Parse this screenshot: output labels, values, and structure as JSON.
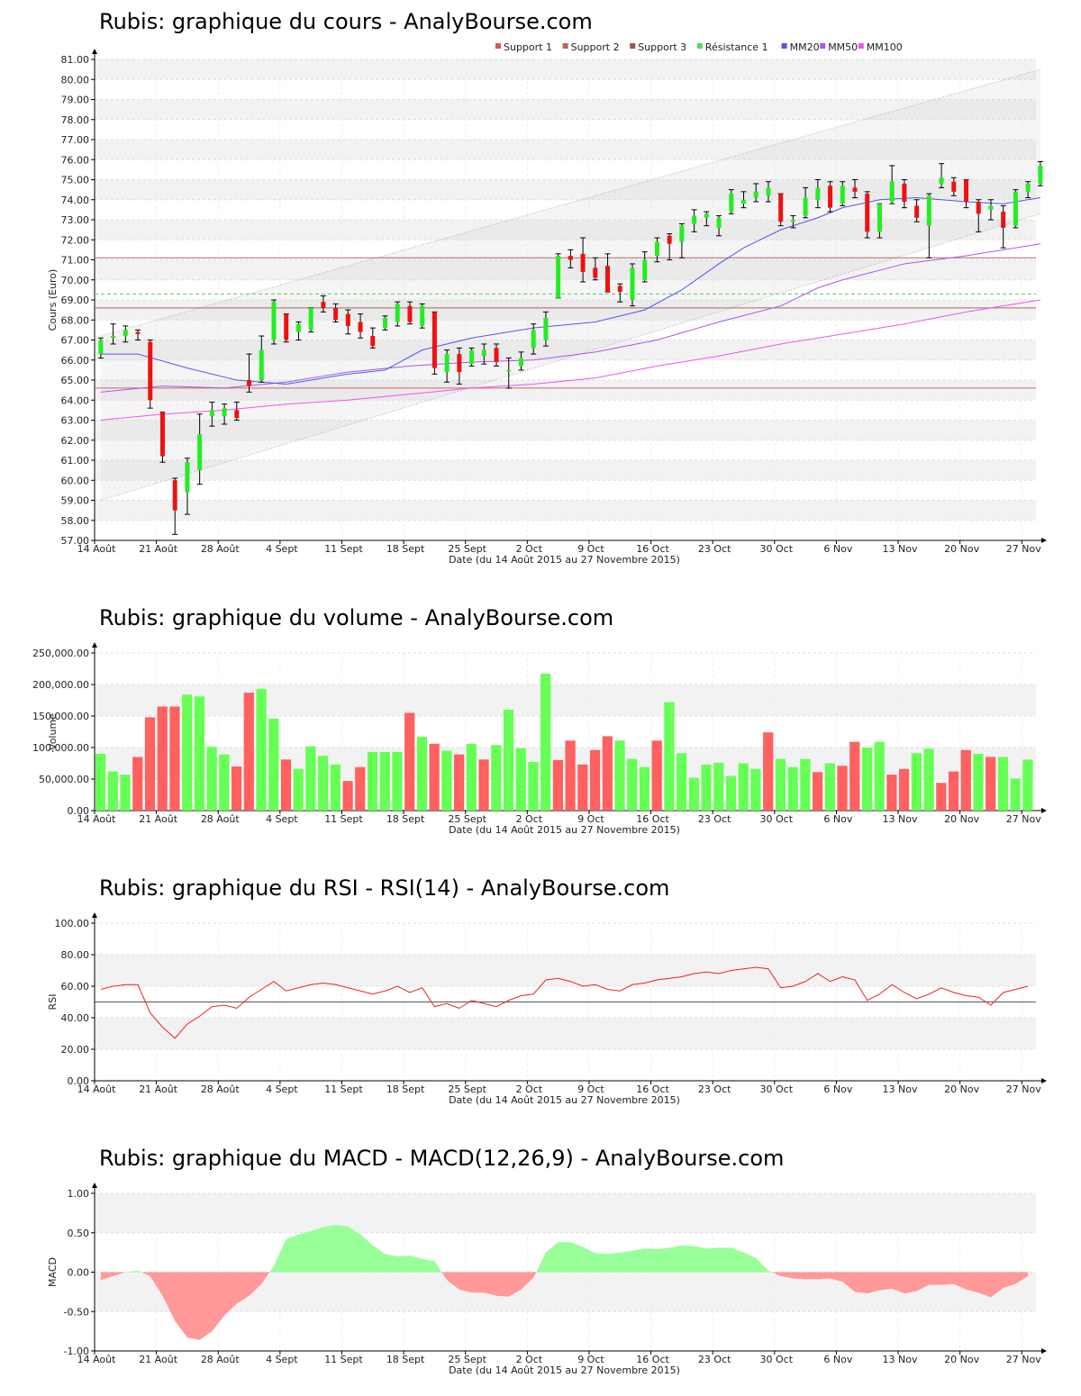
{
  "chart_data": [
    {
      "id": "price",
      "type": "candlestick",
      "title": "Rubis: graphique du cours - AnalyBourse.com",
      "xlabel": "Date (du 14 Août 2015 au 27 Novembre 2015)",
      "ylabel": "Cours (Euro)",
      "ylim": [
        57,
        81
      ],
      "y_ticks": [
        "57.00",
        "58.00",
        "59.00",
        "60.00",
        "61.00",
        "62.00",
        "63.00",
        "64.00",
        "65.00",
        "66.00",
        "67.00",
        "68.00",
        "69.00",
        "70.00",
        "71.00",
        "72.00",
        "73.00",
        "74.00",
        "75.00",
        "76.00",
        "77.00",
        "78.00",
        "79.00",
        "80.00",
        "81.00"
      ],
      "x_ticks": [
        {
          "label": "14 Août",
          "i": 0
        },
        {
          "label": "21 Août",
          "i": 5
        },
        {
          "label": "28 Août",
          "i": 10
        },
        {
          "label": "4 Sept",
          "i": 15
        },
        {
          "label": "11 Sept",
          "i": 20
        },
        {
          "label": "18 Sept",
          "i": 25
        },
        {
          "label": "25 Sept",
          "i": 30
        },
        {
          "label": "2 Oct",
          "i": 35
        },
        {
          "label": "9 Oct",
          "i": 40
        },
        {
          "label": "16 Oct",
          "i": 45
        },
        {
          "label": "23 Oct",
          "i": 50
        },
        {
          "label": "30 Oct",
          "i": 55
        },
        {
          "label": "6 Nov",
          "i": 60
        },
        {
          "label": "13 Nov",
          "i": 65
        },
        {
          "label": "20 Nov",
          "i": 70
        },
        {
          "label": "27 Nov",
          "i": 75
        }
      ],
      "legend": {
        "position": "top-right",
        "entries": [
          {
            "label": "Support 1",
            "color": "#dd5555"
          },
          {
            "label": "Support 2",
            "color": "#bb6655"
          },
          {
            "label": "Support 3",
            "color": "#995555"
          },
          {
            "label": "Résistance 1",
            "color": "#55dd55"
          },
          {
            "label": "MM20",
            "color": "#5555ee"
          },
          {
            "label": "MM50",
            "color": "#aa55ee"
          },
          {
            "label": "MM100",
            "color": "#ee55ee"
          }
        ]
      },
      "levels": {
        "support1": 64.6,
        "support2": 68.6,
        "support3": 71.1,
        "resistance1": 69.3
      },
      "candles": [
        {
          "o": 66.3,
          "h": 67.1,
          "l": 66.1,
          "c": 67.0
        },
        {
          "o": 67.1,
          "h": 67.8,
          "l": 66.8,
          "c": 67.2
        },
        {
          "o": 67.2,
          "h": 67.7,
          "l": 66.9,
          "c": 67.5
        },
        {
          "o": 67.4,
          "h": 67.5,
          "l": 67.0,
          "c": 67.3
        },
        {
          "o": 66.9,
          "h": 67.0,
          "l": 63.6,
          "c": 64.0
        },
        {
          "o": 63.4,
          "h": 63.4,
          "l": 60.9,
          "c": 61.2
        },
        {
          "o": 60.0,
          "h": 60.1,
          "l": 57.3,
          "c": 58.5
        },
        {
          "o": 59.4,
          "h": 61.1,
          "l": 58.3,
          "c": 60.9
        },
        {
          "o": 60.5,
          "h": 63.3,
          "l": 59.8,
          "c": 62.3
        },
        {
          "o": 63.2,
          "h": 63.9,
          "l": 62.7,
          "c": 63.5
        },
        {
          "o": 63.2,
          "h": 63.8,
          "l": 62.8,
          "c": 63.6
        },
        {
          "o": 63.5,
          "h": 63.9,
          "l": 63.0,
          "c": 63.1
        },
        {
          "o": 65.0,
          "h": 66.3,
          "l": 64.4,
          "c": 64.7
        },
        {
          "o": 65.0,
          "h": 67.2,
          "l": 64.9,
          "c": 66.5
        },
        {
          "o": 67.0,
          "h": 69.0,
          "l": 66.8,
          "c": 68.9
        },
        {
          "o": 68.3,
          "h": 68.3,
          "l": 66.9,
          "c": 67.0
        },
        {
          "o": 67.4,
          "h": 67.9,
          "l": 67.0,
          "c": 67.8
        },
        {
          "o": 67.5,
          "h": 68.6,
          "l": 67.4,
          "c": 68.6
        },
        {
          "o": 68.9,
          "h": 69.2,
          "l": 68.4,
          "c": 68.6
        },
        {
          "o": 68.6,
          "h": 68.8,
          "l": 67.9,
          "c": 68.0
        },
        {
          "o": 68.3,
          "h": 68.5,
          "l": 67.3,
          "c": 67.7
        },
        {
          "o": 67.9,
          "h": 68.3,
          "l": 67.1,
          "c": 67.4
        },
        {
          "o": 67.2,
          "h": 67.6,
          "l": 66.6,
          "c": 66.7
        },
        {
          "o": 67.6,
          "h": 68.2,
          "l": 67.5,
          "c": 68.1
        },
        {
          "o": 67.9,
          "h": 68.9,
          "l": 67.7,
          "c": 68.8
        },
        {
          "o": 68.7,
          "h": 68.9,
          "l": 67.8,
          "c": 67.9
        },
        {
          "o": 67.7,
          "h": 68.8,
          "l": 67.6,
          "c": 68.7
        },
        {
          "o": 68.4,
          "h": 68.4,
          "l": 65.3,
          "c": 65.6
        },
        {
          "o": 65.4,
          "h": 66.5,
          "l": 64.9,
          "c": 66.3
        },
        {
          "o": 66.3,
          "h": 66.6,
          "l": 64.8,
          "c": 65.4
        },
        {
          "o": 65.8,
          "h": 66.6,
          "l": 65.7,
          "c": 66.5
        },
        {
          "o": 66.2,
          "h": 66.8,
          "l": 65.8,
          "c": 66.5
        },
        {
          "o": 66.6,
          "h": 66.8,
          "l": 65.7,
          "c": 65.9
        },
        {
          "o": 65.5,
          "h": 66.1,
          "l": 64.6,
          "c": 65.5
        },
        {
          "o": 65.7,
          "h": 66.4,
          "l": 65.5,
          "c": 66.1
        },
        {
          "o": 66.6,
          "h": 67.8,
          "l": 66.3,
          "c": 67.5
        },
        {
          "o": 67.0,
          "h": 68.4,
          "l": 66.7,
          "c": 68.1
        },
        {
          "o": 69.1,
          "h": 71.3,
          "l": 69.1,
          "c": 71.2
        },
        {
          "o": 71.2,
          "h": 71.5,
          "l": 70.6,
          "c": 71.0
        },
        {
          "o": 71.3,
          "h": 72.1,
          "l": 69.9,
          "c": 70.4
        },
        {
          "o": 70.6,
          "h": 71.1,
          "l": 70.0,
          "c": 70.1
        },
        {
          "o": 70.7,
          "h": 71.3,
          "l": 69.4,
          "c": 69.4
        },
        {
          "o": 69.7,
          "h": 69.8,
          "l": 68.9,
          "c": 69.4
        },
        {
          "o": 69.0,
          "h": 70.8,
          "l": 68.7,
          "c": 70.6
        },
        {
          "o": 70.0,
          "h": 71.4,
          "l": 69.9,
          "c": 71.0
        },
        {
          "o": 71.2,
          "h": 72.1,
          "l": 70.9,
          "c": 71.9
        },
        {
          "o": 72.2,
          "h": 72.3,
          "l": 71.0,
          "c": 71.8
        },
        {
          "o": 71.9,
          "h": 72.8,
          "l": 71.1,
          "c": 72.7
        },
        {
          "o": 72.8,
          "h": 73.5,
          "l": 72.4,
          "c": 73.2
        },
        {
          "o": 73.1,
          "h": 73.4,
          "l": 72.7,
          "c": 73.3
        },
        {
          "o": 72.6,
          "h": 73.2,
          "l": 72.2,
          "c": 73.1
        },
        {
          "o": 73.4,
          "h": 74.5,
          "l": 73.3,
          "c": 74.3
        },
        {
          "o": 73.8,
          "h": 74.4,
          "l": 73.6,
          "c": 74.0
        },
        {
          "o": 74.1,
          "h": 74.8,
          "l": 73.9,
          "c": 74.4
        },
        {
          "o": 74.2,
          "h": 74.9,
          "l": 73.9,
          "c": 74.6
        },
        {
          "o": 74.3,
          "h": 74.3,
          "l": 72.7,
          "c": 72.9
        },
        {
          "o": 72.9,
          "h": 73.2,
          "l": 72.6,
          "c": 73.0
        },
        {
          "o": 73.2,
          "h": 74.6,
          "l": 73.1,
          "c": 74.1
        },
        {
          "o": 74.0,
          "h": 75.0,
          "l": 73.6,
          "c": 74.6
        },
        {
          "o": 74.7,
          "h": 74.9,
          "l": 73.4,
          "c": 73.6
        },
        {
          "o": 73.8,
          "h": 74.9,
          "l": 73.7,
          "c": 74.7
        },
        {
          "o": 74.6,
          "h": 75.0,
          "l": 74.1,
          "c": 74.4
        },
        {
          "o": 74.3,
          "h": 74.4,
          "l": 72.1,
          "c": 72.4
        },
        {
          "o": 72.4,
          "h": 73.8,
          "l": 72.1,
          "c": 73.8
        },
        {
          "o": 73.9,
          "h": 75.7,
          "l": 73.8,
          "c": 74.9
        },
        {
          "o": 74.8,
          "h": 75.0,
          "l": 73.6,
          "c": 73.9
        },
        {
          "o": 73.7,
          "h": 74.0,
          "l": 72.9,
          "c": 73.1
        },
        {
          "o": 72.7,
          "h": 74.3,
          "l": 71.1,
          "c": 74.2
        },
        {
          "o": 74.8,
          "h": 75.8,
          "l": 74.6,
          "c": 75.1
        },
        {
          "o": 74.9,
          "h": 75.1,
          "l": 74.2,
          "c": 74.4
        },
        {
          "o": 75.0,
          "h": 75.0,
          "l": 73.6,
          "c": 73.9
        },
        {
          "o": 73.9,
          "h": 74.0,
          "l": 72.4,
          "c": 73.3
        },
        {
          "o": 73.5,
          "h": 74.0,
          "l": 73.0,
          "c": 73.7
        },
        {
          "o": 73.4,
          "h": 73.7,
          "l": 71.6,
          "c": 72.6
        },
        {
          "o": 72.7,
          "h": 74.5,
          "l": 72.6,
          "c": 74.4
        },
        {
          "o": 74.4,
          "h": 74.9,
          "l": 74.1,
          "c": 74.8
        },
        {
          "o": 74.8,
          "h": 75.9,
          "l": 74.7,
          "c": 75.7
        }
      ],
      "ma20": [
        [
          0,
          66.3
        ],
        [
          3,
          66.3
        ],
        [
          7,
          65.6
        ],
        [
          11,
          65.0
        ],
        [
          15,
          64.8
        ],
        [
          20,
          65.3
        ],
        [
          23,
          65.5
        ],
        [
          26,
          66.5
        ],
        [
          30,
          67.1
        ],
        [
          35,
          67.6
        ],
        [
          40,
          67.9
        ],
        [
          44,
          68.5
        ],
        [
          47,
          69.5
        ],
        [
          50,
          70.8
        ],
        [
          52,
          71.6
        ],
        [
          55,
          72.5
        ],
        [
          58,
          73.1
        ],
        [
          60,
          73.6
        ],
        [
          63,
          74.0
        ],
        [
          66,
          74.1
        ],
        [
          70,
          73.9
        ],
        [
          73,
          73.8
        ],
        [
          76,
          74.1
        ]
      ],
      "ma50": [
        [
          0,
          64.4
        ],
        [
          5,
          64.7
        ],
        [
          10,
          64.6
        ],
        [
          15,
          64.9
        ],
        [
          20,
          65.4
        ],
        [
          25,
          65.7
        ],
        [
          30,
          65.9
        ],
        [
          35,
          66.0
        ],
        [
          40,
          66.4
        ],
        [
          45,
          67.0
        ],
        [
          50,
          67.9
        ],
        [
          55,
          68.7
        ],
        [
          58,
          69.6
        ],
        [
          60,
          70.0
        ],
        [
          65,
          70.8
        ],
        [
          70,
          71.2
        ],
        [
          76,
          71.8
        ]
      ],
      "ma100": [
        [
          0,
          63.0
        ],
        [
          5,
          63.3
        ],
        [
          10,
          63.5
        ],
        [
          15,
          63.8
        ],
        [
          20,
          64.0
        ],
        [
          25,
          64.3
        ],
        [
          30,
          64.6
        ],
        [
          35,
          64.8
        ],
        [
          40,
          65.1
        ],
        [
          45,
          65.7
        ],
        [
          50,
          66.2
        ],
        [
          55,
          66.8
        ],
        [
          60,
          67.3
        ],
        [
          65,
          67.8
        ],
        [
          70,
          68.4
        ],
        [
          76,
          69.0
        ]
      ],
      "channel_upper": [
        [
          0,
          67.2
        ],
        [
          76,
          80.5
        ]
      ],
      "channel_lower": [
        [
          0,
          59.0
        ],
        [
          76,
          73.3
        ]
      ]
    },
    {
      "id": "volume",
      "type": "bar",
      "title": "Rubis: graphique du volume - AnalyBourse.com",
      "xlabel": "Date (du 14 Août 2015 au 27 Novembre 2015)",
      "ylabel": "Volume",
      "ylim": [
        0,
        250000
      ],
      "y_ticks": [
        "0.00",
        "50,000.00",
        "100,000.00",
        "150,000.00",
        "200,000.00",
        "250,000.00"
      ],
      "values": [
        90000,
        62000,
        57000,
        85000,
        148000,
        165000,
        165000,
        184000,
        181000,
        101000,
        89000,
        70000,
        187000,
        193000,
        146000,
        81000,
        66000,
        102000,
        87000,
        73000,
        47000,
        69000,
        93000,
        93000,
        93000,
        155000,
        117000,
        106000,
        95000,
        89000,
        106000,
        81000,
        104000,
        160000,
        99000,
        77000,
        217000,
        80000,
        111000,
        73000,
        96000,
        118000,
        111000,
        82000,
        69000,
        111000,
        172000,
        91000,
        52000,
        73000,
        76000,
        55000,
        75000,
        66000,
        124000,
        82000,
        69000,
        82000,
        61000,
        75000,
        71000,
        109000,
        100000,
        109000,
        57000,
        66000,
        91000,
        98000,
        44000,
        62000,
        96000,
        90000,
        85000,
        85000,
        51000,
        81000
      ],
      "colors": [
        "up",
        "up",
        "up",
        "down",
        "down",
        "down",
        "down",
        "up",
        "up",
        "up",
        "up",
        "down",
        "down",
        "up",
        "up",
        "down",
        "up",
        "up",
        "up",
        "up",
        "down",
        "down",
        "up",
        "up",
        "up",
        "down",
        "up",
        "down",
        "up",
        "down",
        "up",
        "down",
        "up",
        "up",
        "up",
        "up",
        "up",
        "down",
        "down",
        "down",
        "down",
        "down",
        "up",
        "up",
        "up",
        "down",
        "up",
        "up",
        "up",
        "up",
        "up",
        "up",
        "up",
        "up",
        "down",
        "up",
        "up",
        "up",
        "down",
        "up",
        "down",
        "down",
        "up",
        "up",
        "down",
        "down",
        "up",
        "up",
        "down",
        "down",
        "down",
        "up",
        "down",
        "up",
        "up",
        "up"
      ]
    },
    {
      "id": "rsi",
      "type": "line",
      "title": "Rubis: graphique du RSI - RSI(14) - AnalyBourse.com",
      "xlabel": "Date (du 14 Août 2015 au 27 Novembre 2015)",
      "ylabel": "RSI",
      "ylim": [
        0,
        100
      ],
      "y_ticks": [
        "0.00",
        "20.00",
        "40.00",
        "60.00",
        "80.00",
        "100.00"
      ],
      "reference": 50,
      "values": [
        58,
        60,
        61,
        61,
        43,
        34,
        27,
        36,
        41,
        47,
        48,
        46,
        53,
        58,
        63,
        57,
        59,
        61,
        62,
        61,
        59,
        57,
        55,
        57,
        60,
        56,
        59,
        47,
        49,
        46,
        51,
        49,
        47,
        51,
        54,
        55,
        64,
        65,
        63,
        60,
        61,
        58,
        57,
        61,
        62,
        64,
        65,
        66,
        68,
        69,
        68,
        70,
        71,
        72,
        71,
        59,
        60,
        63,
        68,
        63,
        66,
        64,
        51,
        55,
        61,
        56,
        52,
        55,
        59,
        56,
        54,
        53,
        48,
        56,
        58,
        60
      ]
    },
    {
      "id": "macd",
      "type": "area",
      "title": "Rubis: graphique du MACD - MACD(12,26,9) - AnalyBourse.com",
      "xlabel": "Date (du 14 Août 2015 au 27 Novembre 2015)",
      "ylabel": "MACD",
      "ylim": [
        -1,
        1
      ],
      "y_ticks": [
        "-1.00",
        "-0.50",
        "0.00",
        "0.50",
        "1.00"
      ],
      "values": [
        -0.1,
        -0.05,
        0.0,
        0.02,
        -0.05,
        -0.3,
        -0.62,
        -0.83,
        -0.86,
        -0.75,
        -0.55,
        -0.4,
        -0.3,
        -0.15,
        0.08,
        0.42,
        0.48,
        0.52,
        0.57,
        0.6,
        0.58,
        0.48,
        0.34,
        0.23,
        0.2,
        0.21,
        0.17,
        0.14,
        -0.1,
        -0.22,
        -0.26,
        -0.26,
        -0.3,
        -0.31,
        -0.22,
        -0.07,
        0.25,
        0.38,
        0.38,
        0.32,
        0.24,
        0.23,
        0.25,
        0.27,
        0.3,
        0.29,
        0.31,
        0.34,
        0.33,
        0.3,
        0.31,
        0.31,
        0.25,
        0.18,
        0.02,
        -0.05,
        -0.08,
        -0.09,
        -0.09,
        -0.08,
        -0.12,
        -0.25,
        -0.27,
        -0.23,
        -0.21,
        -0.27,
        -0.24,
        -0.16,
        -0.16,
        -0.15,
        -0.22,
        -0.26,
        -0.32,
        -0.2,
        -0.15,
        -0.05
      ]
    }
  ]
}
